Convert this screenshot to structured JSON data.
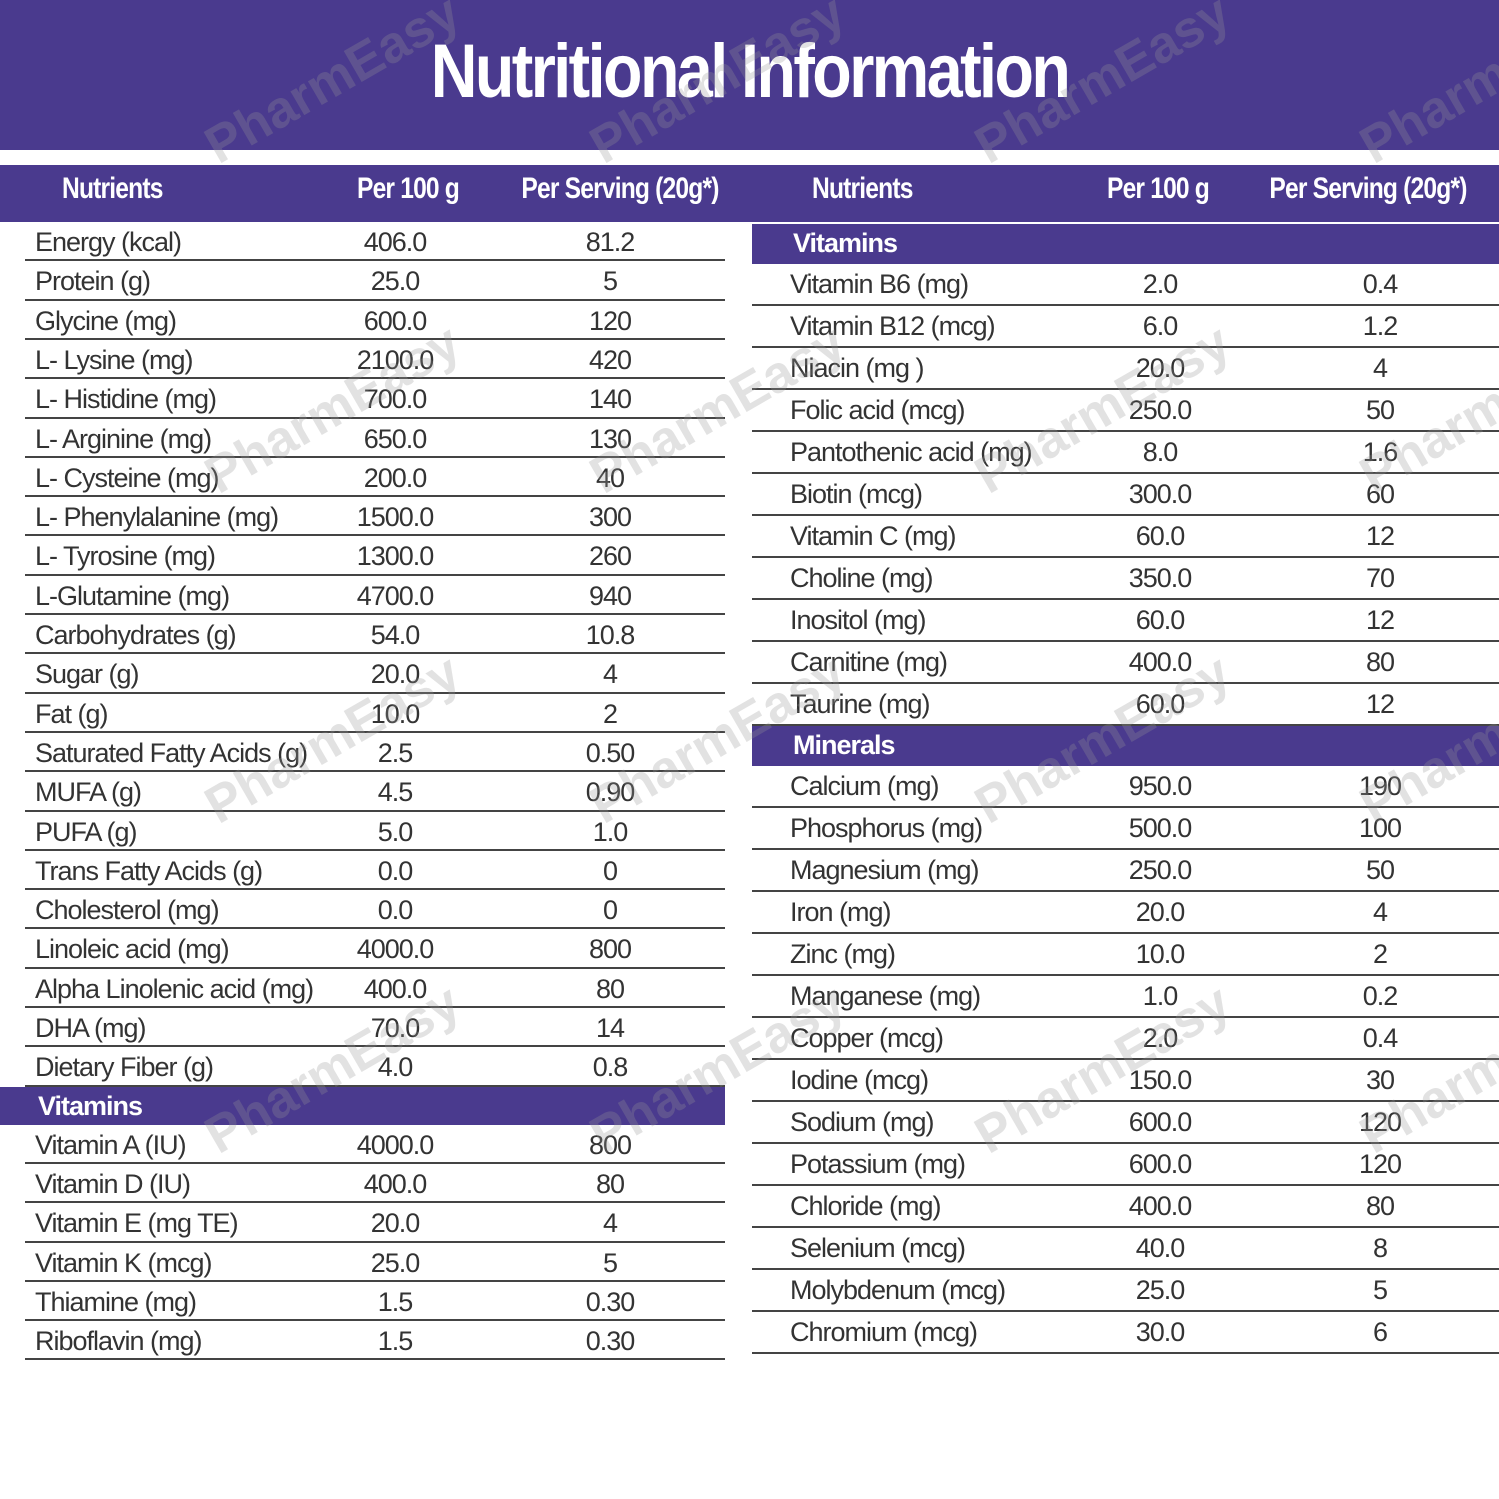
{
  "title": "Nutritional Information",
  "watermark": "PharmEasy",
  "left": {
    "header": [
      "Nutrients",
      "Per 100 g",
      "Per Serving (20g*)"
    ],
    "sections": [
      {
        "rows": [
          [
            "Energy (kcal)",
            "406.0",
            "81.2"
          ],
          [
            "Protein (g)",
            "25.0",
            "5"
          ],
          [
            "Glycine (mg)",
            "600.0",
            "120"
          ],
          [
            "L- Lysine (mg)",
            "2100.0",
            "420"
          ],
          [
            "L- Histidine (mg)",
            "700.0",
            "140"
          ],
          [
            "L- Arginine (mg)",
            "650.0",
            "130"
          ],
          [
            "L- Cysteine (mg)",
            "200.0",
            "40"
          ],
          [
            "L- Phenylalanine (mg)",
            "1500.0",
            "300"
          ],
          [
            "L- Tyrosine (mg)",
            "1300.0",
            "260"
          ],
          [
            "L-Glutamine (mg)",
            "4700.0",
            "940"
          ],
          [
            "Carbohydrates (g)",
            "54.0",
            "10.8"
          ],
          [
            "Sugar (g)",
            "20.0",
            "4"
          ],
          [
            "Fat (g)",
            "10.0",
            "2"
          ],
          [
            "Saturated Fatty Acids (g)",
            "2.5",
            "0.50"
          ],
          [
            "MUFA (g)",
            "4.5",
            "0.90"
          ],
          [
            "PUFA (g)",
            "5.0",
            "1.0"
          ],
          [
            "Trans Fatty Acids (g)",
            "0.0",
            "0"
          ],
          [
            "Cholesterol (mg)",
            "0.0",
            "0"
          ],
          [
            "Linoleic acid (mg)",
            "4000.0",
            "800"
          ],
          [
            "Alpha Linolenic acid (mg)",
            "400.0",
            "80"
          ],
          [
            "DHA (mg)",
            "70.0",
            "14"
          ],
          [
            "Dietary Fiber (g)",
            "4.0",
            "0.8"
          ]
        ]
      },
      {
        "heading": "Vitamins",
        "rows": [
          [
            "Vitamin A (IU)",
            "4000.0",
            "800"
          ],
          [
            "Vitamin D (IU)",
            "400.0",
            "80"
          ],
          [
            "Vitamin E (mg TE)",
            "20.0",
            "4"
          ],
          [
            "Vitamin K (mcg)",
            "25.0",
            "5"
          ],
          [
            "Thiamine (mg)",
            "1.5",
            "0.30"
          ],
          [
            "Riboflavin (mg)",
            "1.5",
            "0.30"
          ]
        ]
      }
    ]
  },
  "right": {
    "header": [
      "Nutrients",
      "Per 100 g",
      "Per Serving (20g*)"
    ],
    "sections": [
      {
        "heading": "Vitamins",
        "rows": [
          [
            "Vitamin B6 (mg)",
            "2.0",
            "0.4"
          ],
          [
            "Vitamin B12 (mcg)",
            "6.0",
            "1.2"
          ],
          [
            "Niacin (mg )",
            "20.0",
            "4"
          ],
          [
            "Folic acid (mcg)",
            "250.0",
            "50"
          ],
          [
            "Pantothenic acid (mg)",
            "8.0",
            "1.6"
          ],
          [
            "Biotin (mcg)",
            "300.0",
            "60"
          ],
          [
            "Vitamin C (mg)",
            "60.0",
            "12"
          ],
          [
            "Choline (mg)",
            "350.0",
            "70"
          ],
          [
            "Inositol (mg)",
            "60.0",
            "12"
          ],
          [
            "Carnitine (mg)",
            "400.0",
            "80"
          ],
          [
            "Taurine (mg)",
            "60.0",
            "12"
          ]
        ]
      },
      {
        "heading": "Minerals",
        "rows": [
          [
            "Calcium (mg)",
            "950.0",
            "190"
          ],
          [
            "Phosphorus (mg)",
            "500.0",
            "100"
          ],
          [
            "Magnesium (mg)",
            "250.0",
            "50"
          ],
          [
            "Iron (mg)",
            "20.0",
            "4"
          ],
          [
            "Zinc (mg)",
            "10.0",
            "2"
          ],
          [
            "Manganese (mg)",
            "1.0",
            "0.2"
          ],
          [
            "Copper (mcg)",
            "2.0",
            "0.4"
          ],
          [
            "Iodine (mcg)",
            "150.0",
            "30"
          ],
          [
            "Sodium (mg)",
            "600.0",
            "120"
          ],
          [
            "Potassium (mg)",
            "600.0",
            "120"
          ],
          [
            "Chloride (mg)",
            "400.0",
            "80"
          ],
          [
            "Selenium (mcg)",
            "40.0",
            "8"
          ],
          [
            "Molybdenum (mcg)",
            "25.0",
            "5"
          ],
          [
            "Chromium (mcg)",
            "30.0",
            "6"
          ]
        ]
      }
    ]
  }
}
